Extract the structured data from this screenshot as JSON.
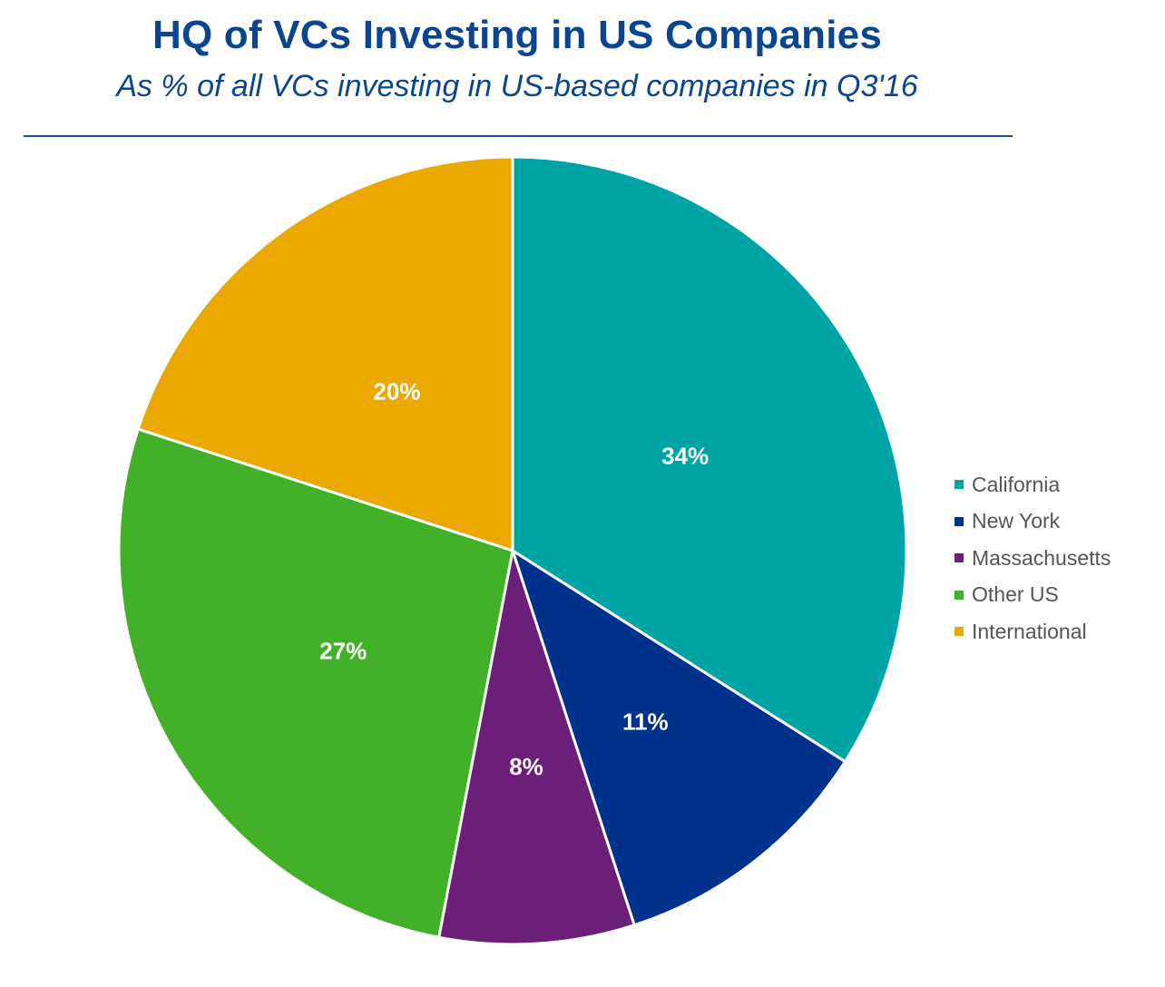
{
  "chart_data": {
    "type": "pie",
    "title": "HQ of VCs Investing in US Companies",
    "subtitle": "As % of all VCs investing in US-based companies in Q3'16",
    "legend_position": "right",
    "slices": [
      {
        "name": "California",
        "value": 34,
        "label": "34%",
        "color": "#00a4a4"
      },
      {
        "name": "New York",
        "value": 11,
        "label": "11%",
        "color": "#00318d"
      },
      {
        "name": "Massachusetts",
        "value": 8,
        "label": "8%",
        "color": "#6c1f78"
      },
      {
        "name": "Other US",
        "value": 27,
        "label": "27%",
        "color": "#43b02a"
      },
      {
        "name": "International",
        "value": 20,
        "label": "20%",
        "color": "#eaa800"
      }
    ]
  }
}
